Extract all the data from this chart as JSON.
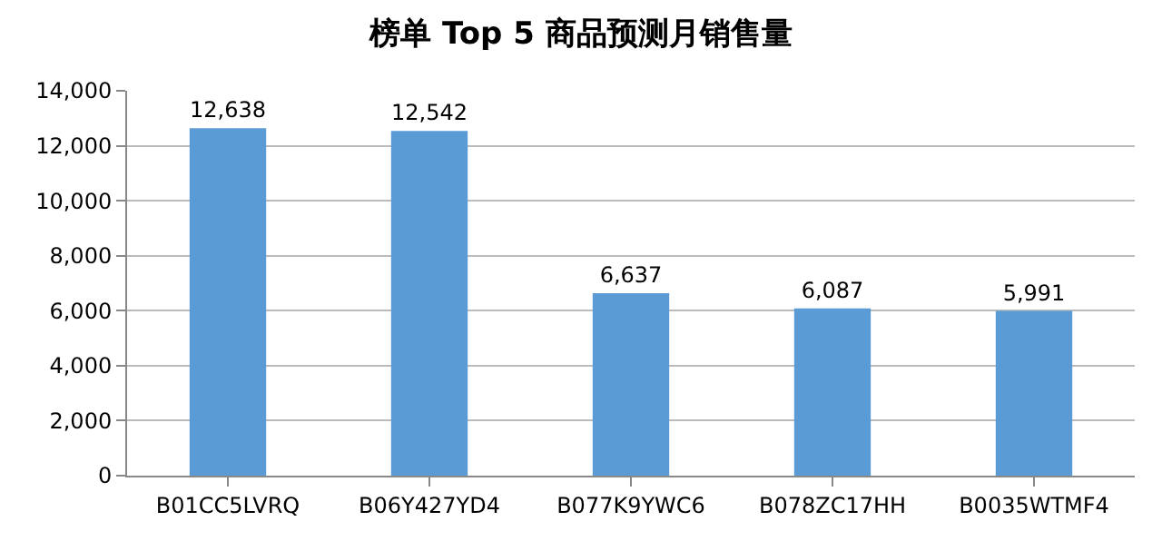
{
  "chart_data": {
    "type": "bar",
    "title": "榜单 Top 5 商品预测月销售量",
    "categories": [
      "B01CC5LVRQ",
      "B06Y427YD4",
      "B077K9YWC6",
      "B078ZC17HH",
      "B0035WTMF4"
    ],
    "values": [
      12638,
      12542,
      6637,
      6087,
      5991
    ],
    "value_labels": [
      "12,638",
      "12,542",
      "6,637",
      "6,087",
      "5,991"
    ],
    "color": "#5b9bd5",
    "ylim": [
      0,
      14000
    ],
    "yticks": [
      0,
      {
        "value": 2000,
        "label": "2,000"
      },
      {
        "value": 4000,
        "label": "4,000"
      },
      {
        "value": 6000,
        "label": "6,000"
      },
      {
        "value": 8000,
        "label": "8,000"
      },
      {
        "value": 10000,
        "label": "10,000"
      },
      {
        "value": 12000,
        "label": "12,000"
      },
      {
        "value": 14000,
        "label": "14,000"
      }
    ],
    "grid": "y",
    "legend": false
  }
}
